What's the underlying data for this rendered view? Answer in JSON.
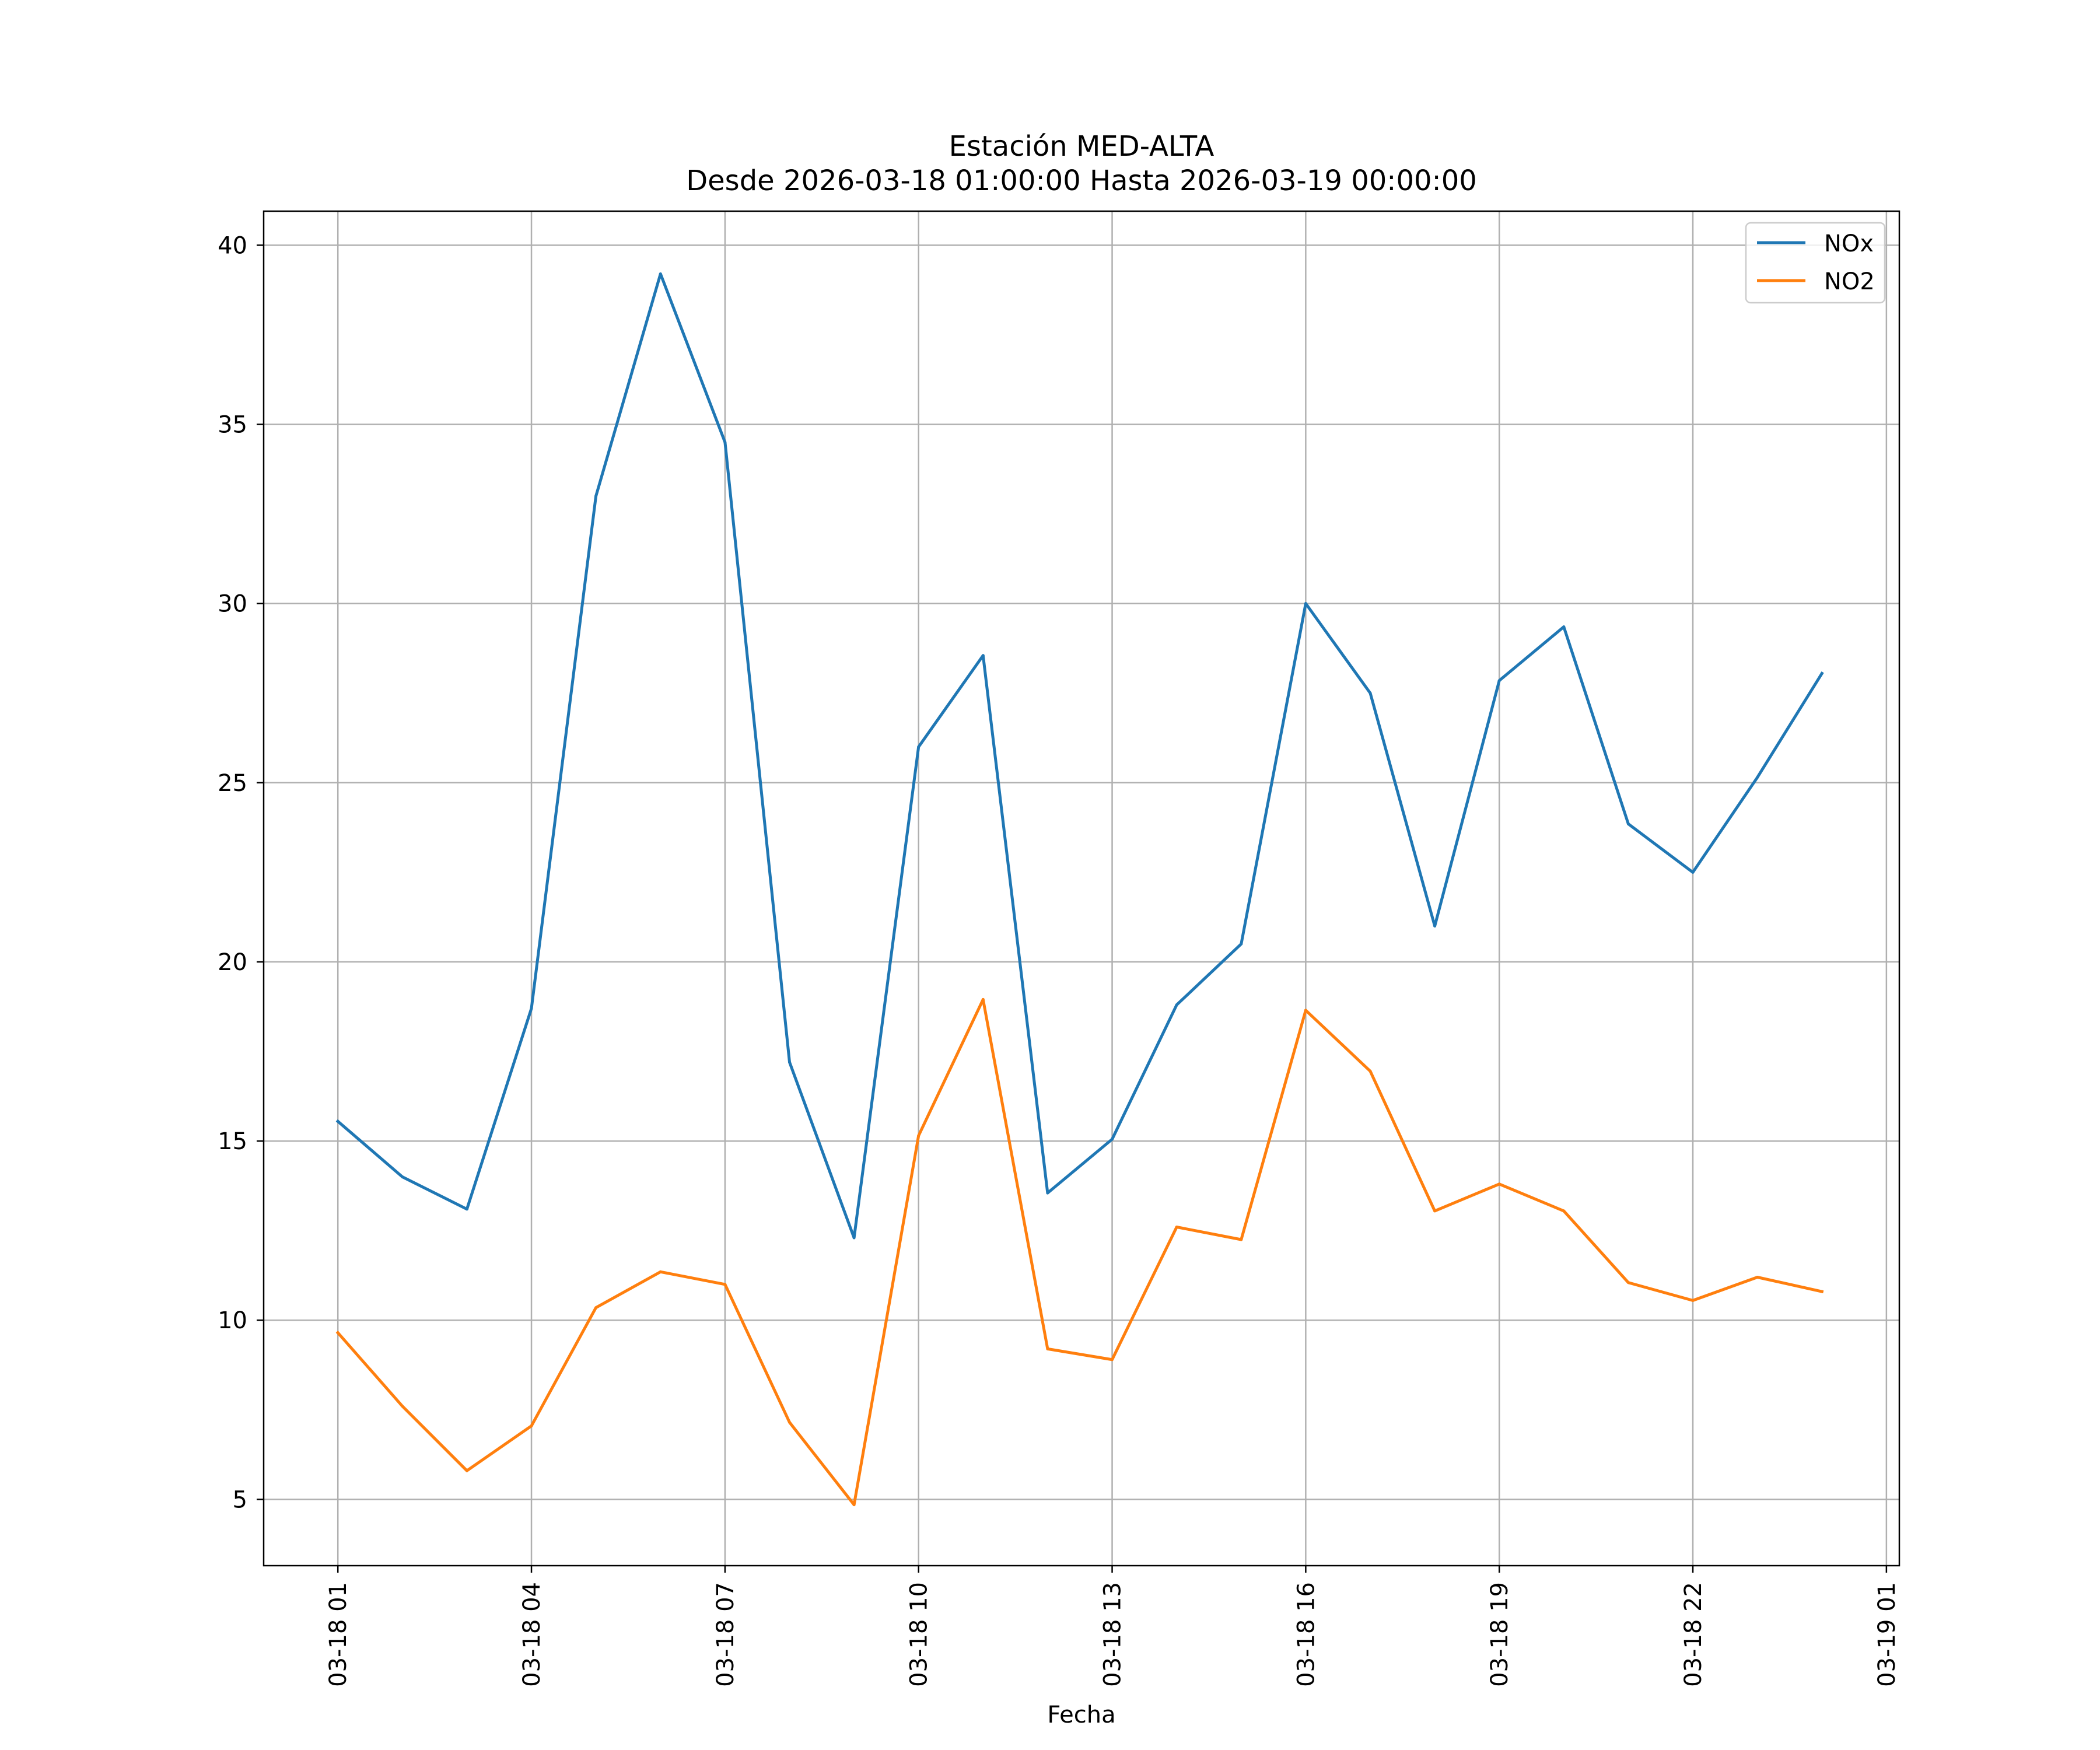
{
  "chart_data": {
    "type": "line",
    "title": "Estación MED-ALTA",
    "subtitle": "Desde 2026-03-18 01:00:00 Hasta 2026-03-19 00:00:00",
    "xlabel": "Fecha",
    "ylabel": "",
    "x_hours": [
      1,
      2,
      3,
      4,
      5,
      6,
      7,
      8,
      9,
      10,
      11,
      12,
      13,
      14,
      15,
      16,
      17,
      18,
      19,
      20,
      21,
      22,
      23,
      24
    ],
    "xlim": [
      -0.15,
      25.2
    ],
    "ylim": [
      3.15,
      40.95
    ],
    "x_ticks": [
      {
        "hour": 1,
        "label": "03-18 01"
      },
      {
        "hour": 4,
        "label": "03-18 04"
      },
      {
        "hour": 7,
        "label": "03-18 07"
      },
      {
        "hour": 10,
        "label": "03-18 10"
      },
      {
        "hour": 13,
        "label": "03-18 13"
      },
      {
        "hour": 16,
        "label": "03-18 16"
      },
      {
        "hour": 19,
        "label": "03-18 19"
      },
      {
        "hour": 22,
        "label": "03-18 22"
      },
      {
        "hour": 25,
        "label": "03-19 01"
      }
    ],
    "y_ticks": [
      {
        "value": 5,
        "label": "5"
      },
      {
        "value": 10,
        "label": "10"
      },
      {
        "value": 15,
        "label": "15"
      },
      {
        "value": 20,
        "label": "20"
      },
      {
        "value": 25,
        "label": "25"
      },
      {
        "value": 30,
        "label": "30"
      },
      {
        "value": 35,
        "label": "35"
      },
      {
        "value": 40,
        "label": "40"
      }
    ],
    "grid": true,
    "legend_position": "top-right",
    "series": [
      {
        "name": "NOx",
        "color": "#1f77b4",
        "values": [
          15.55,
          14.0,
          13.1,
          18.7,
          33.0,
          39.2,
          34.5,
          17.2,
          12.3,
          26.0,
          28.55,
          13.55,
          15.05,
          18.8,
          20.5,
          30.0,
          27.5,
          21.0,
          27.85,
          29.35,
          23.85,
          22.5,
          25.15,
          28.05
        ]
      },
      {
        "name": "NO2",
        "color": "#ff7f0e",
        "values": [
          9.65,
          7.6,
          5.8,
          7.05,
          10.35,
          11.35,
          11.0,
          7.15,
          4.85,
          15.15,
          18.95,
          9.2,
          8.9,
          12.6,
          12.25,
          18.65,
          16.95,
          13.05,
          13.8,
          13.05,
          11.05,
          10.55,
          11.2,
          10.8
        ]
      }
    ]
  }
}
